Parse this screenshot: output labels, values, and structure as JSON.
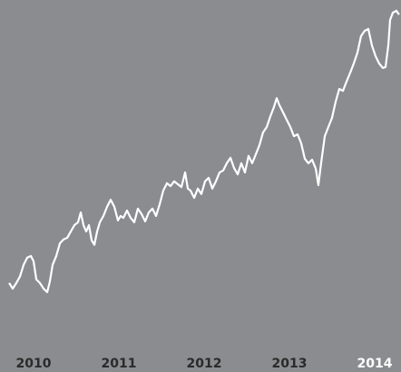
{
  "chart_data": {
    "type": "line",
    "background": "#8a8c8f",
    "xlim": [
      2009.606,
      2014.309
    ],
    "ylim": [
      0,
      100
    ],
    "xticks": [
      2010,
      2011,
      2012,
      2013,
      2014
    ],
    "tick_label_colors": [
      "#2a2a2a",
      "#2a2a2a",
      "#2a2a2a",
      "#2a2a2a",
      "#ffffff"
    ],
    "grid": false,
    "series": [
      {
        "color": "#ffffff",
        "x": [
          2009.713,
          2009.755,
          2009.798,
          2009.84,
          2009.883,
          2009.926,
          2009.968,
          2010.0,
          2010.032,
          2010.074,
          2010.117,
          2010.16,
          2010.191,
          2010.223,
          2010.266,
          2010.309,
          2010.351,
          2010.394,
          2010.436,
          2010.479,
          2010.521,
          2010.553,
          2010.585,
          2010.617,
          2010.649,
          2010.681,
          2010.713,
          2010.745,
          2010.777,
          2010.819,
          2010.862,
          2010.904,
          2010.947,
          2010.989,
          2011.021,
          2011.053,
          2011.096,
          2011.138,
          2011.181,
          2011.223,
          2011.266,
          2011.309,
          2011.351,
          2011.394,
          2011.436,
          2011.479,
          2011.521,
          2011.564,
          2011.606,
          2011.649,
          2011.691,
          2011.734,
          2011.777,
          2011.809,
          2011.84,
          2011.883,
          2011.926,
          2011.968,
          2012.011,
          2012.053,
          2012.096,
          2012.138,
          2012.181,
          2012.223,
          2012.266,
          2012.309,
          2012.351,
          2012.394,
          2012.436,
          2012.479,
          2012.521,
          2012.564,
          2012.606,
          2012.649,
          2012.691,
          2012.734,
          2012.777,
          2012.819,
          2012.851,
          2012.883,
          2012.926,
          2012.968,
          2013.011,
          2013.053,
          2013.096,
          2013.138,
          2013.181,
          2013.223,
          2013.266,
          2013.309,
          2013.34,
          2013.372,
          2013.415,
          2013.457,
          2013.5,
          2013.543,
          2013.585,
          2013.628,
          2013.67,
          2013.713,
          2013.755,
          2013.798,
          2013.84,
          2013.883,
          2013.926,
          2013.968,
          2014.011,
          2014.053,
          2014.096,
          2014.128,
          2014.16,
          2014.181,
          2014.213,
          2014.255,
          2014.287
        ],
        "values": [
          10.9,
          9.1,
          10.9,
          12.9,
          16.6,
          18.9,
          19.4,
          17.7,
          12,
          10.9,
          9.1,
          8,
          11.4,
          16.6,
          19.4,
          23.4,
          24.6,
          25.1,
          27.1,
          29.1,
          30,
          33.1,
          29.1,
          27.1,
          29.1,
          24.3,
          22.9,
          27.1,
          30,
          32,
          34.9,
          37.1,
          34.9,
          30.6,
          32,
          31.4,
          33.7,
          31.4,
          30,
          34.3,
          32.6,
          30.3,
          33.1,
          34.3,
          32,
          35.7,
          40,
          42.3,
          41.4,
          42.9,
          42,
          41.1,
          45.7,
          40.6,
          40,
          37.7,
          40.6,
          38.9,
          42.9,
          44,
          40.6,
          42.9,
          45.7,
          46.3,
          48.6,
          50.3,
          47.1,
          45.1,
          48.6,
          45.7,
          50.9,
          48.6,
          51.4,
          54.3,
          58.3,
          60,
          63.4,
          66.3,
          69.1,
          66.9,
          64.6,
          62.3,
          60,
          57.1,
          57.7,
          54.9,
          50,
          48.6,
          49.7,
          46.9,
          41.7,
          48.6,
          57.1,
          60,
          62.9,
          68,
          72,
          71.4,
          74.3,
          77.1,
          80,
          83.4,
          88.6,
          90.3,
          90.9,
          85.7,
          82.3,
          80,
          78.6,
          78.9,
          85.7,
          93.7,
          96,
          96.6,
          95.4
        ]
      }
    ]
  }
}
